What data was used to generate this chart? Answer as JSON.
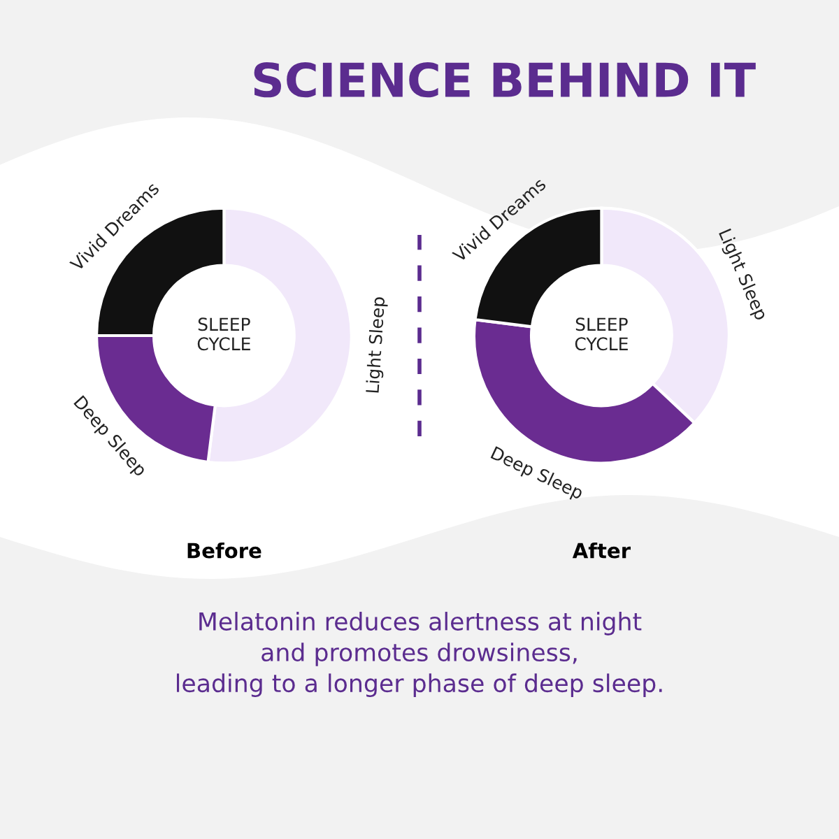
{
  "chart_data": [
    {
      "type": "donut",
      "title": "SCIENCE BEHIND IT",
      "xlabel": "Before",
      "categories": [
        "Light Sleep",
        "Deep Sleep",
        "Vivid Dreams"
      ],
      "values": [
        52,
        23,
        25
      ],
      "colors": [
        "#f1e8fa",
        "#6a2c91",
        "#111111"
      ],
      "annotations": [
        "SLEEP\nCYCLE"
      ]
    },
    {
      "type": "donut",
      "xlabel": "After",
      "categories": [
        "Light Sleep",
        "Deep Sleep",
        "Vivid Dreams"
      ],
      "values": [
        37,
        40,
        23
      ],
      "colors": [
        "#f1e8fa",
        "#6a2c91",
        "#111111"
      ],
      "annotations": [
        "SLEEP\nCYCLE",
        "Melatonin reduces alertness at night\nand promotes drowsiness,\nleading to a longer phase of deep sleep."
      ]
    }
  ]
}
